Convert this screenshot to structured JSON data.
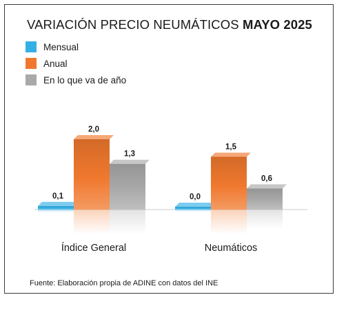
{
  "chart_data": {
    "type": "bar",
    "title": "VARIACIÓN PRECIO NEUMÁTICOS",
    "title_bold": "MAYO 2025",
    "categories": [
      "Índice General",
      "Neumáticos"
    ],
    "series": [
      {
        "name": "Mensual",
        "values": [
          0.1,
          0.0
        ],
        "labels": [
          "0,1",
          "0,0"
        ],
        "color": "#35b0e6"
      },
      {
        "name": "Anual",
        "values": [
          2.0,
          1.5
        ],
        "labels": [
          "2,0",
          "1,5"
        ],
        "color": "#f0782e"
      },
      {
        "name": "En lo que va de año",
        "values": [
          1.3,
          0.6
        ],
        "labels": [
          "1,3",
          "0,6"
        ],
        "color": "#a9a9a9"
      }
    ],
    "ylim": [
      0,
      2.0
    ],
    "grid": false,
    "legend": "top-left",
    "source": "Fuente: Elaboración propia de ADINE con datos del INE"
  }
}
